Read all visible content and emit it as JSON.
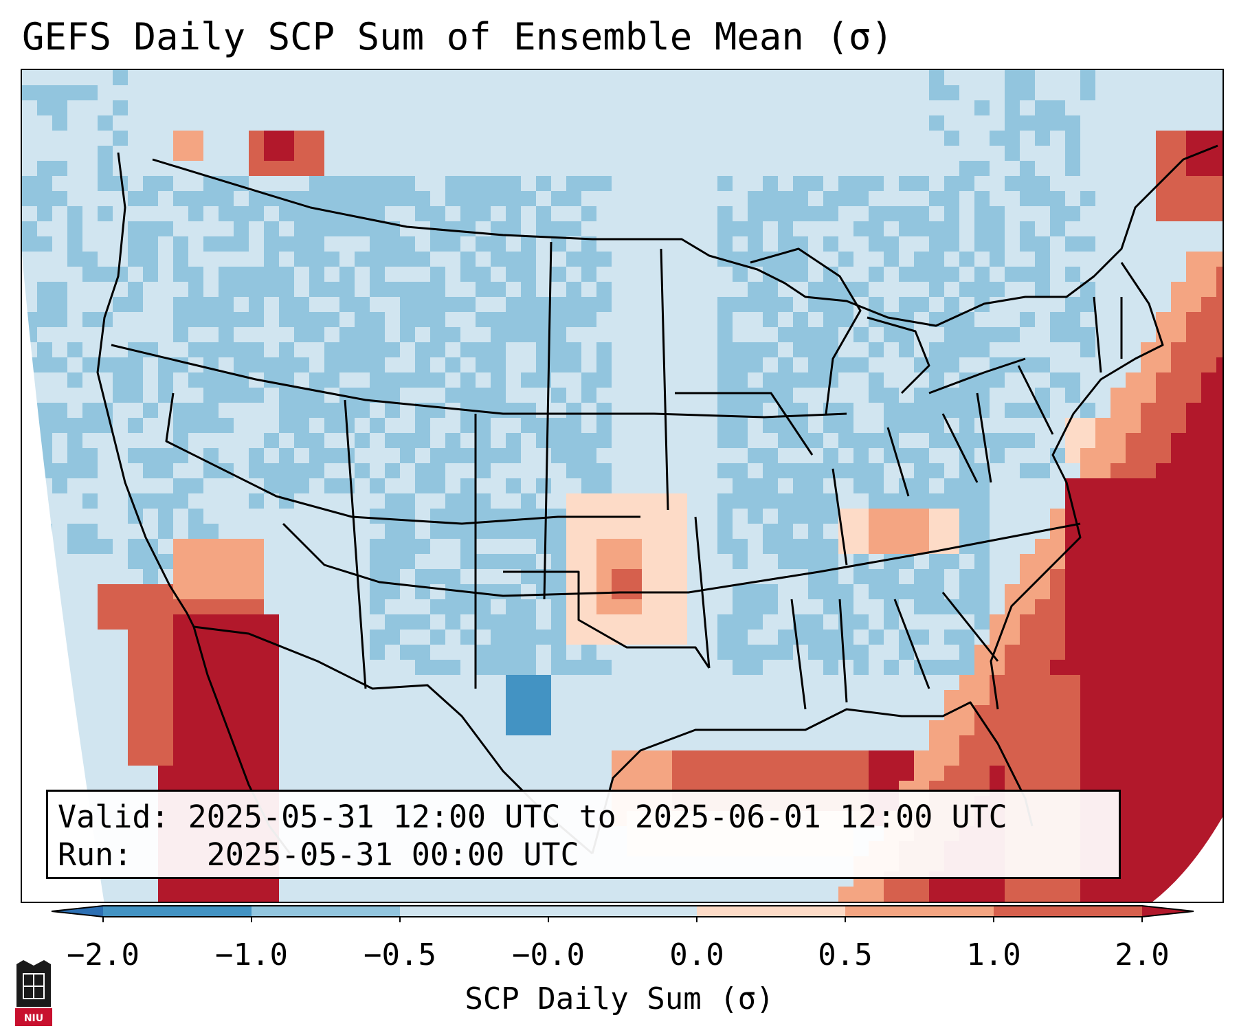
{
  "title": "GEFS Daily SCP Sum of Ensemble Mean (σ)",
  "info": {
    "valid_label": "Valid:",
    "valid_text": "2025-05-31 12:00 UTC to 2025-06-01 12:00 UTC",
    "run_label": "Run:",
    "run_text": "2025-05-31 00:00 UTC"
  },
  "colorbar": {
    "label": "SCP Daily Sum (σ)",
    "ticks": [
      "−2.0",
      "−1.0",
      "−0.5",
      "−0.0",
      "0.0",
      "0.5",
      "1.0",
      "2.0"
    ],
    "colors": {
      "under": "#2c6fb3",
      "b1": "#4393c3",
      "b2": "#92c5de",
      "b3": "#d1e5f0",
      "b4": "#fddbc7",
      "b5": "#f4a582",
      "b6": "#d6604d",
      "over": "#b2182b"
    }
  },
  "logo": {
    "text": "NIU",
    "color": "#c8102e"
  }
}
